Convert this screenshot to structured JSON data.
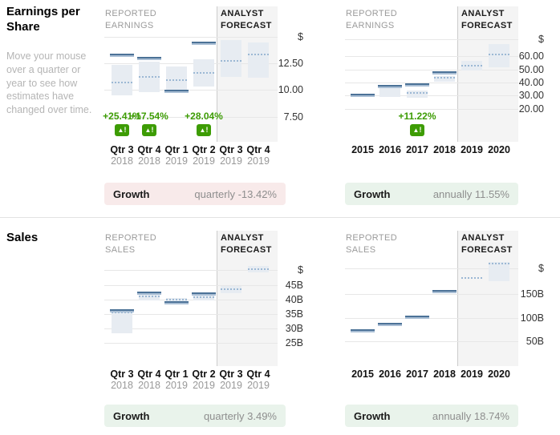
{
  "page": {
    "sections": {
      "eps": {
        "title": "Earnings per Share",
        "hint": "Move your mouse over a quarter or year to see how estimates have changed over time."
      },
      "sales": {
        "title": "Sales"
      }
    }
  },
  "colors": {
    "actual_line": "#4c7297",
    "actual_line_light": "#a9bed4",
    "estimate_dotted": "#9cb8d4",
    "range_box": "#e7ecf2",
    "forecast_bg": "#f4f4f4",
    "positive_green": "#3d9c04",
    "growth_negative_bg": "#f8eaea",
    "growth_positive_bg": "#e9f3eb"
  },
  "chart_data": [
    {
      "type": "range-bar",
      "metric": "Earnings per Share",
      "period": "quarterly",
      "left_label": [
        "REPORTED",
        "EARNINGS"
      ],
      "right_label": [
        "ANALYST",
        "FORECAST"
      ],
      "unit": "$",
      "y_range": [
        5.2,
        15.2
      ],
      "y_ticks": [
        {
          "label": "$",
          "value": 14.9
        },
        {
          "label": "12.50",
          "value": 12.5
        },
        {
          "label": "10.00",
          "value": 10.0
        },
        {
          "label": "7.50",
          "value": 7.5
        }
      ],
      "points": [
        {
          "label": "Qtr 3",
          "sub": "2018",
          "forecast": false,
          "actual": 13.2,
          "estimate": 10.7,
          "range": [
            9.5,
            12.3
          ],
          "change": "+25.41%"
        },
        {
          "label": "Qtr 4",
          "sub": "2018",
          "forecast": false,
          "actual": 12.9,
          "estimate": 11.2,
          "range": [
            9.8,
            12.6
          ],
          "change": "+17.54%"
        },
        {
          "label": "Qtr 1",
          "sub": "2019",
          "forecast": false,
          "actual": 9.9,
          "estimate": 10.9,
          "range": [
            10.0,
            12.2
          ],
          "change": null
        },
        {
          "label": "Qtr 2",
          "sub": "2019",
          "forecast": false,
          "actual": 14.3,
          "estimate": 11.6,
          "range": [
            10.3,
            12.8
          ],
          "change": "+28.04%"
        },
        {
          "label": "Qtr 3",
          "sub": "2019",
          "forecast": true,
          "actual": null,
          "estimate": 12.7,
          "range": [
            11.2,
            14.6
          ],
          "change": null
        },
        {
          "label": "Qtr 4",
          "sub": "2019",
          "forecast": true,
          "actual": null,
          "estimate": 13.3,
          "range": [
            11.1,
            14.4
          ],
          "change": null
        }
      ],
      "growth": {
        "label": "Growth",
        "value": "quarterly -13.42%",
        "tone": "negative"
      }
    },
    {
      "type": "range-bar",
      "metric": "Earnings per Share",
      "period": "annually",
      "left_label": [
        "REPORTED",
        "EARNINGS"
      ],
      "right_label": [
        "ANALYST",
        "FORECAST"
      ],
      "unit": "$",
      "y_range": [
        -5,
        77
      ],
      "y_ticks": [
        {
          "label": "$",
          "value": 73
        },
        {
          "label": "60.00",
          "value": 60
        },
        {
          "label": "50.00",
          "value": 50
        },
        {
          "label": "40.00",
          "value": 40
        },
        {
          "label": "30.00",
          "value": 30
        },
        {
          "label": "20.00",
          "value": 20
        }
      ],
      "points": [
        {
          "label": "2015",
          "sub": null,
          "forecast": false,
          "actual": 30.5,
          "estimate": 29.5,
          "range": null,
          "change": null
        },
        {
          "label": "2016",
          "sub": null,
          "forecast": false,
          "actual": 37,
          "estimate": null,
          "range": [
            29,
            37
          ],
          "change": null
        },
        {
          "label": "2017",
          "sub": null,
          "forecast": false,
          "actual": 38,
          "estimate": 32,
          "range": [
            28.5,
            34
          ],
          "change": "+11.22%"
        },
        {
          "label": "2018",
          "sub": null,
          "forecast": false,
          "actual": 47,
          "estimate": 43.5,
          "range": [
            40.5,
            45
          ],
          "change": null
        },
        {
          "label": "2019",
          "sub": null,
          "forecast": true,
          "actual": null,
          "estimate": 53,
          "range": [
            49,
            56.3
          ],
          "change": null
        },
        {
          "label": "2020",
          "sub": null,
          "forecast": true,
          "actual": null,
          "estimate": 61,
          "range": [
            51.5,
            69
          ],
          "change": null
        }
      ],
      "growth": {
        "label": "Growth",
        "value": "annually 11.55%",
        "tone": "positive"
      }
    },
    {
      "type": "range-bar",
      "metric": "Sales",
      "period": "quarterly",
      "left_label": [
        "REPORTED",
        "SALES"
      ],
      "right_label": [
        "ANALYST",
        "FORECAST"
      ],
      "unit": "$",
      "y_range": [
        17,
        54.5
      ],
      "y_ticks": [
        {
          "label": "$",
          "value": 50.4
        },
        {
          "label": "45B",
          "value": 45
        },
        {
          "label": "40B",
          "value": 40
        },
        {
          "label": "35B",
          "value": 35
        },
        {
          "label": "30B",
          "value": 30
        },
        {
          "label": "25B",
          "value": 25
        }
      ],
      "points": [
        {
          "label": "Qtr 3",
          "sub": "2018",
          "forecast": false,
          "actual": 36.3,
          "estimate": 35.5,
          "range": [
            28.5,
            36.1
          ],
          "change": null
        },
        {
          "label": "Qtr 4",
          "sub": "2018",
          "forecast": false,
          "actual": 42.3,
          "estimate": 41.2,
          "range": [
            39.8,
            42.0
          ],
          "change": null
        },
        {
          "label": "Qtr 1",
          "sub": "2019",
          "forecast": false,
          "actual": 39.0,
          "estimate": 40.0,
          "range": [
            38.3,
            40.6
          ],
          "change": null
        },
        {
          "label": "Qtr 2",
          "sub": "2019",
          "forecast": false,
          "actual": 42.0,
          "estimate": 40.8,
          "range": [
            39.7,
            41.7
          ],
          "change": null
        },
        {
          "label": "Qtr 3",
          "sub": "2019",
          "forecast": true,
          "actual": null,
          "estimate": 43.7,
          "range": [
            42.4,
            44.9
          ],
          "change": null
        },
        {
          "label": "Qtr 4",
          "sub": "2019",
          "forecast": true,
          "actual": null,
          "estimate": 50.6,
          "range": [
            49.5,
            51.8
          ],
          "change": null
        }
      ],
      "growth": {
        "label": "Growth",
        "value": "quarterly 3.49%",
        "tone": "positive"
      }
    },
    {
      "type": "range-bar",
      "metric": "Sales",
      "period": "annually",
      "left_label": [
        "REPORTED",
        "SALES"
      ],
      "right_label": [
        "ANALYST",
        "FORECAST"
      ],
      "unit": "$",
      "y_range": [
        -2,
        227
      ],
      "y_ticks": [
        {
          "label": "$",
          "value": 205
        },
        {
          "label": "150B",
          "value": 150
        },
        {
          "label": "100B",
          "value": 100
        },
        {
          "label": "50B",
          "value": 50
        }
      ],
      "points": [
        {
          "label": "2015",
          "sub": null,
          "forecast": false,
          "actual": 73,
          "estimate": 71,
          "range": null,
          "change": null
        },
        {
          "label": "2016",
          "sub": null,
          "forecast": false,
          "actual": 87,
          "estimate": null,
          "range": null,
          "change": null
        },
        {
          "label": "2017",
          "sub": null,
          "forecast": false,
          "actual": 102,
          "estimate": null,
          "range": null,
          "change": null
        },
        {
          "label": "2018",
          "sub": null,
          "forecast": false,
          "actual": 155,
          "estimate": null,
          "range": null,
          "change": null
        },
        {
          "label": "2019",
          "sub": null,
          "forecast": true,
          "actual": null,
          "estimate": 185,
          "range": null,
          "change": null
        },
        {
          "label": "2020",
          "sub": null,
          "forecast": true,
          "actual": null,
          "estimate": 215,
          "range": [
            177,
            219
          ],
          "change": null
        }
      ],
      "growth": {
        "label": "Growth",
        "value": "annually 18.74%",
        "tone": "positive"
      }
    }
  ]
}
